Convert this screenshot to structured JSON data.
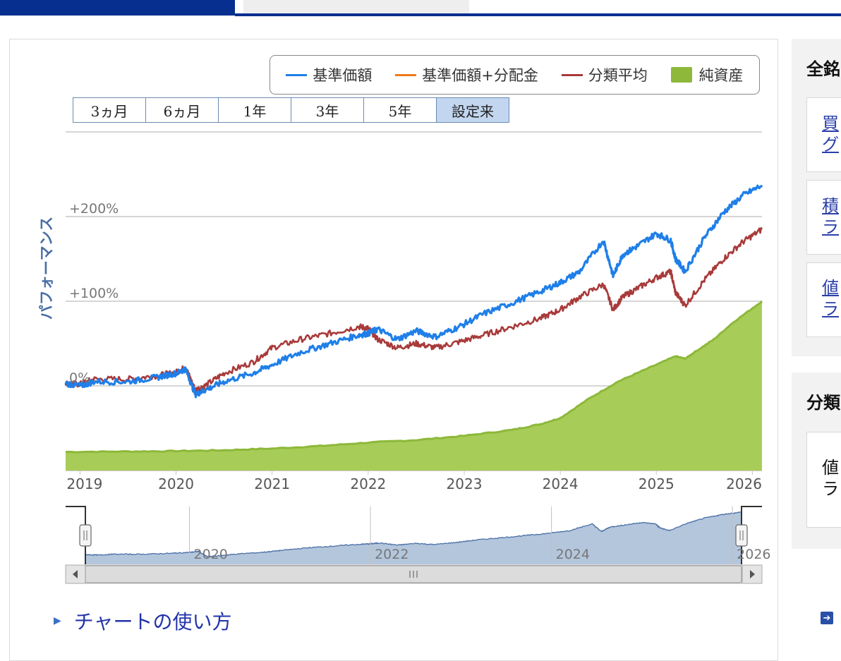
{
  "legend": {
    "nav": "基準価額",
    "nav_with_dist": "基準価額+分配金",
    "category_avg": "分類平均",
    "net_assets": "純資産"
  },
  "ranges": [
    {
      "label": "3ヵ月"
    },
    {
      "label": "6ヵ月"
    },
    {
      "label": "1年"
    },
    {
      "label": "3年"
    },
    {
      "label": "5年"
    },
    {
      "label": "設定来"
    }
  ],
  "active_range": "設定来",
  "y_axis_label": "パフォーマンス",
  "how_to_use": "チャートの使い方",
  "sidebar": {
    "header1": "全銘",
    "header2": "分類",
    "card1": [
      "買",
      "グ"
    ],
    "card2": [
      "積",
      "ラ"
    ],
    "card3": [
      "値",
      "ラ"
    ],
    "card4": [
      "値",
      "ラ"
    ]
  },
  "colors": {
    "nav": "#1f7fe8",
    "nav_with_dist": "#f07a1a",
    "category_avg": "#a83a3a",
    "net_assets": "#8db83a",
    "navigator_fill": "#b4c6dc",
    "navigator_line": "#4a6fa5"
  },
  "chart_data": {
    "type": "line",
    "x_ticks": [
      "2019",
      "2020",
      "2021",
      "2022",
      "2023",
      "2024",
      "2025",
      "2026"
    ],
    "y_ticks": [
      {
        "label": "+200%",
        "value": 200
      },
      {
        "label": "+100%",
        "value": 100
      },
      {
        "label": "0%",
        "value": 0
      }
    ],
    "ylim": [
      -100,
      300
    ],
    "xlim": [
      2018.85,
      2026.1
    ],
    "series": [
      {
        "name": "基準価額",
        "key": "nav",
        "x": [
          2018.85,
          2019.0,
          2019.15,
          2019.5,
          2019.8,
          2020.0,
          2020.1,
          2020.2,
          2020.3,
          2020.5,
          2020.8,
          2021.0,
          2021.3,
          2021.6,
          2021.9,
          2022.0,
          2022.1,
          2022.3,
          2022.5,
          2022.7,
          2022.95,
          2023.2,
          2023.5,
          2023.8,
          2024.0,
          2024.2,
          2024.45,
          2024.55,
          2024.65,
          2024.8,
          2025.0,
          2025.15,
          2025.2,
          2025.3,
          2025.5,
          2025.7,
          2025.9,
          2026.1
        ],
        "y": [
          3,
          0,
          5,
          5,
          10,
          15,
          20,
          -10,
          -5,
          5,
          15,
          25,
          40,
          50,
          60,
          62,
          67,
          55,
          65,
          58,
          70,
          85,
          98,
          112,
          122,
          135,
          172,
          130,
          155,
          165,
          180,
          172,
          150,
          135,
          175,
          205,
          225,
          237
        ]
      },
      {
        "name": "分類平均",
        "key": "category_avg",
        "x": [
          2018.85,
          2019.0,
          2019.15,
          2019.5,
          2019.8,
          2020.0,
          2020.1,
          2020.2,
          2020.3,
          2020.5,
          2020.8,
          2021.0,
          2021.3,
          2021.6,
          2021.9,
          2022.0,
          2022.1,
          2022.3,
          2022.5,
          2022.7,
          2022.95,
          2023.2,
          2023.5,
          2023.8,
          2024.0,
          2024.2,
          2024.45,
          2024.55,
          2024.65,
          2024.8,
          2025.0,
          2025.15,
          2025.2,
          2025.3,
          2025.5,
          2025.7,
          2025.9,
          2026.1
        ],
        "y": [
          3,
          2,
          8,
          8,
          12,
          16,
          22,
          -5,
          0,
          15,
          28,
          45,
          55,
          62,
          70,
          68,
          55,
          45,
          50,
          45,
          52,
          60,
          70,
          80,
          90,
          105,
          120,
          90,
          105,
          115,
          128,
          135,
          110,
          95,
          125,
          150,
          170,
          185
        ]
      },
      {
        "name": "純資産",
        "key": "net_assets",
        "x": [
          2018.85,
          2019.5,
          2020.0,
          2020.5,
          2021.0,
          2021.5,
          2022.0,
          2022.5,
          2023.0,
          2023.5,
          2023.8,
          2024.0,
          2024.3,
          2024.6,
          2024.9,
          2025.2,
          2025.3,
          2025.4,
          2025.6,
          2025.8,
          2026.1
        ],
        "y": [
          -78,
          -77.5,
          -77,
          -76,
          -74,
          -71,
          -67,
          -64,
          -59,
          -52,
          -45,
          -38,
          -15,
          5,
          20,
          35,
          32,
          40,
          55,
          75,
          100
        ]
      }
    ],
    "navigator_ticks": [
      "2020",
      "2022",
      "2024",
      "2026"
    ]
  }
}
